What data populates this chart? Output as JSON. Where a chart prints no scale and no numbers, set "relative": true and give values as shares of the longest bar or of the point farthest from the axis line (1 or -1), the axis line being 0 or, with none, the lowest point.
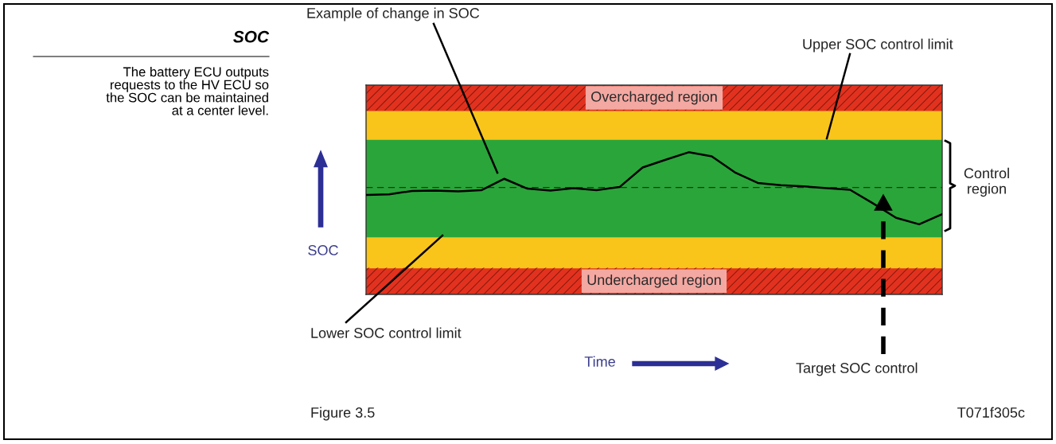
{
  "chart_data": {
    "type": "line",
    "title": "SOC",
    "subtitle": "The battery ECU outputs\nrequests to the HV ECU so\nthe SOC can be maintained\nat a center level.",
    "xlabel": "Time",
    "ylabel": "SOC",
    "relative": true,
    "categories": [
      null,
      null,
      null,
      null,
      null,
      null,
      null,
      null,
      null,
      null,
      null,
      null,
      null,
      null,
      null,
      null,
      null,
      null,
      null,
      null,
      null,
      null,
      null,
      null,
      null,
      null
    ],
    "series": [
      {
        "color": "#000000",
        "values": [
          0.699,
          0.704,
          0.728,
          0.731,
          0.725,
          0.733,
          0.813,
          0.744,
          0.731,
          0.747,
          0.733,
          0.755,
          0.893,
          0.947,
          1,
          0.971,
          0.859,
          0.784,
          0.768,
          0.76,
          0.747,
          0.736,
          0.64,
          0.539,
          0.493,
          0.565
        ]
      }
    ],
    "bands": [
      {
        "axis": "y",
        "from": 0,
        "to": 0.187,
        "label": "Undercharged region",
        "color": "#e2321f"
      },
      {
        "axis": "y",
        "from": 0.187,
        "to": 0.405,
        "color": "#f9c51b"
      },
      {
        "axis": "y",
        "from": 0.405,
        "to": 1.091,
        "color": "#2aa53a"
      },
      {
        "axis": "y",
        "from": 1.091,
        "to": 1.293,
        "color": "#f9c51b"
      },
      {
        "axis": "y",
        "from": 1.293,
        "to": 1.472,
        "label": "Overcharged region",
        "color": "#e2321f"
      }
    ],
    "ref_lines": [
      {
        "axis": "y",
        "value": 0.752,
        "line_style": "dashed",
        "color": "#1a3a1a"
      }
    ],
    "annotations": [
      "Example of change in SOC",
      "Upper SOC control limit",
      "Lower SOC control limit",
      "Control\nregion",
      "Target SOC control",
      "Figure 3.5",
      "T071f305c"
    ]
  }
}
